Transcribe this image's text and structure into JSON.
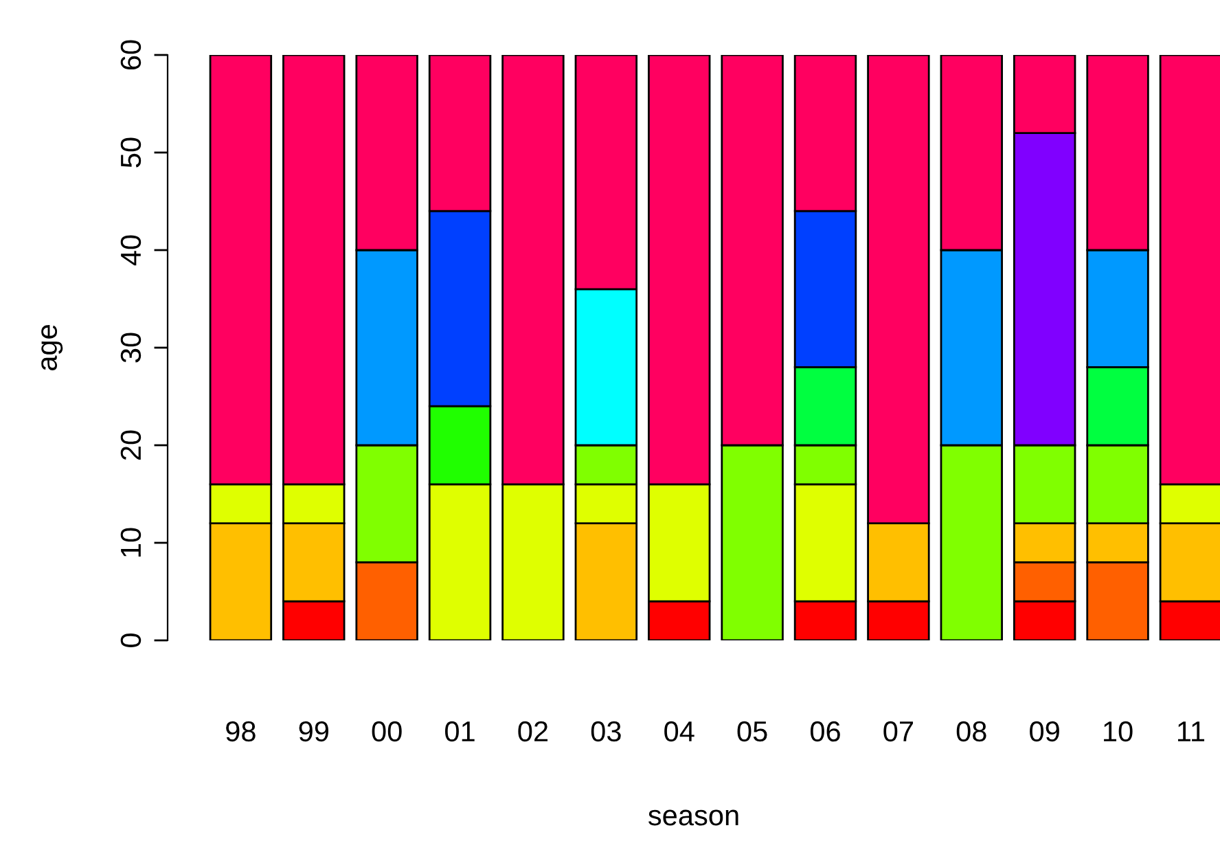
{
  "chart_data": {
    "type": "bar",
    "stacked": true,
    "xlabel": "season",
    "ylabel": "age",
    "categories": [
      "98",
      "99",
      "00",
      "01",
      "02",
      "03",
      "04",
      "05",
      "06",
      "07",
      "08",
      "09",
      "10",
      "11"
    ],
    "ylim": [
      0,
      60
    ],
    "yticks": [
      0,
      10,
      20,
      30,
      40,
      50,
      60
    ],
    "grid": false,
    "legend": false,
    "series": [
      {
        "color": "#ff0000",
        "values": [
          null,
          4,
          null,
          null,
          null,
          null,
          4,
          null,
          4,
          4,
          null,
          4,
          null,
          4
        ]
      },
      {
        "color": "#ff6000",
        "values": [
          null,
          null,
          8,
          null,
          null,
          null,
          null,
          null,
          null,
          null,
          null,
          4,
          8,
          null
        ]
      },
      {
        "color": "#ffbf00",
        "values": [
          12,
          8,
          null,
          null,
          null,
          12,
          null,
          null,
          null,
          8,
          null,
          4,
          4,
          8
        ]
      },
      {
        "color": "#dfff00",
        "values": [
          4,
          4,
          null,
          16,
          16,
          4,
          12,
          null,
          12,
          null,
          null,
          null,
          null,
          4
        ]
      },
      {
        "color": "#80ff00",
        "values": [
          null,
          null,
          12,
          null,
          null,
          4,
          null,
          20,
          4,
          null,
          20,
          8,
          8,
          null
        ]
      },
      {
        "color": "#20ff00",
        "values": [
          null,
          null,
          null,
          8,
          null,
          null,
          null,
          null,
          null,
          null,
          null,
          null,
          null,
          null
        ]
      },
      {
        "color": "#00ff40",
        "values": [
          null,
          null,
          null,
          null,
          null,
          null,
          null,
          null,
          8,
          null,
          null,
          null,
          8,
          null
        ]
      },
      {
        "color": "#00ffff",
        "values": [
          null,
          null,
          null,
          null,
          null,
          16,
          null,
          null,
          null,
          null,
          null,
          null,
          null,
          null
        ]
      },
      {
        "color": "#0099ff",
        "values": [
          null,
          null,
          20,
          null,
          null,
          null,
          null,
          null,
          null,
          null,
          20,
          null,
          12,
          null
        ]
      },
      {
        "color": "#0040ff",
        "values": [
          null,
          null,
          null,
          20,
          null,
          null,
          null,
          null,
          16,
          null,
          null,
          null,
          null,
          null
        ]
      },
      {
        "color": "#8000ff",
        "values": [
          null,
          null,
          null,
          null,
          null,
          null,
          null,
          null,
          null,
          null,
          null,
          32,
          null,
          null
        ]
      },
      {
        "color": "#ff0060",
        "values": [
          44,
          44,
          20,
          16,
          44,
          24,
          44,
          40,
          16,
          48,
          20,
          8,
          20,
          44
        ]
      }
    ]
  }
}
